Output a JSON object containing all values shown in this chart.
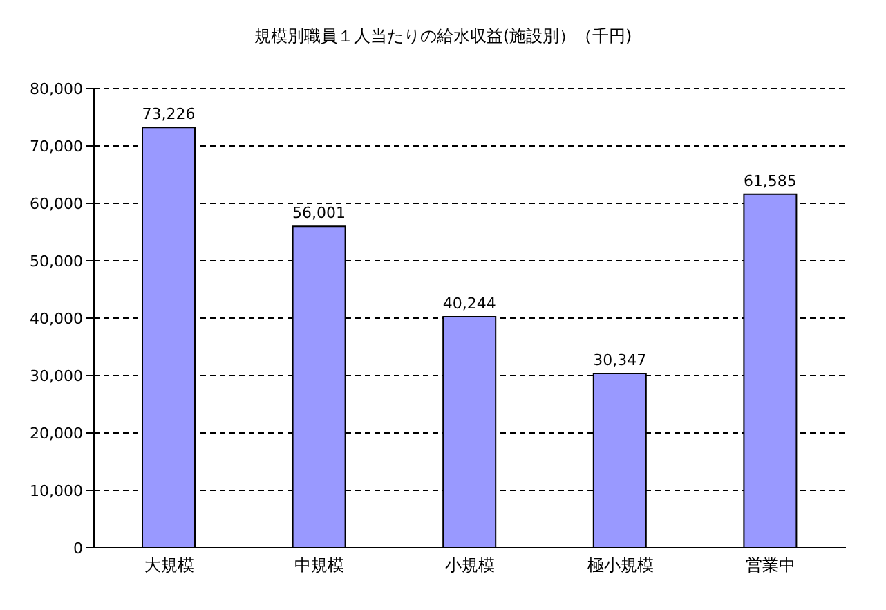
{
  "chart_data": {
    "type": "bar",
    "title": "規模別職員１人当たりの給水収益(施設別）（千円)",
    "categories": [
      "大規模",
      "中規模",
      "小規模",
      "極小規模",
      "営業中"
    ],
    "values": [
      73226,
      56001,
      40244,
      30347,
      61585
    ],
    "value_labels": [
      "73,226",
      "56,001",
      "40,244",
      "30,347",
      "61,585"
    ],
    "color": "#9999ff",
    "ylim": [
      0,
      80000
    ],
    "yticks": [
      0,
      {
        "value": 10000,
        "label": "10,000"
      },
      {
        "value": 20000,
        "label": "20,000"
      },
      {
        "value": 30000,
        "label": "30,000"
      },
      {
        "value": 40000,
        "label": "40,000"
      },
      {
        "value": 50000,
        "label": "50,000"
      },
      {
        "value": 60000,
        "label": "60,000"
      },
      {
        "value": 70000,
        "label": "70,000"
      },
      {
        "value": 80000,
        "label": "80,000"
      }
    ],
    "grid": "y",
    "legend": false
  }
}
